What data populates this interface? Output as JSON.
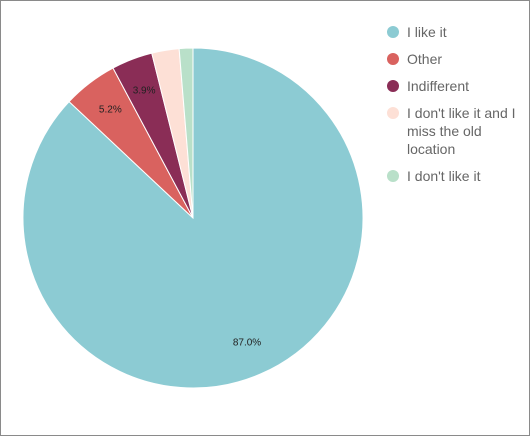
{
  "chart_data": {
    "type": "pie",
    "categories": [
      "I like it",
      "Other",
      "Indifferent",
      "I don't like it and I miss the old location",
      "I don't like it"
    ],
    "values": [
      87.0,
      5.2,
      3.9,
      2.6,
      1.3
    ],
    "value_labels": [
      "87.0%",
      "5.2%",
      "3.9%",
      null,
      null
    ],
    "colors": [
      "#8ccbd3",
      "#d9625f",
      "#8a2d56",
      "#fde0d6",
      "#b9e0c9"
    ],
    "legend": "right"
  }
}
